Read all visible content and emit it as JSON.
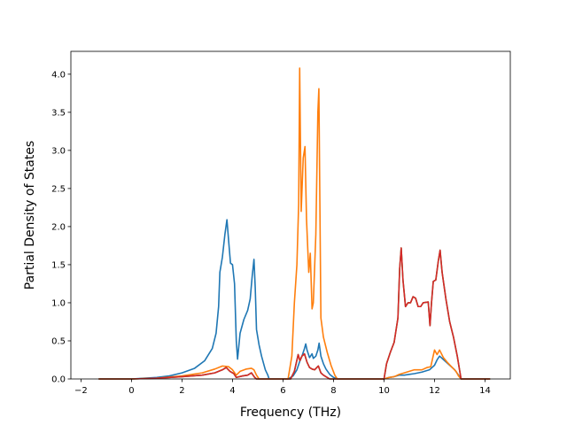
{
  "chart_data": {
    "type": "line",
    "title": "",
    "xlabel": "Frequency (THz)",
    "ylabel": "Partial Density of States",
    "xlim": [
      -2.4,
      15.0
    ],
    "ylim": [
      0.0,
      4.3
    ],
    "xticks": [
      -2,
      0,
      2,
      4,
      6,
      8,
      10,
      12,
      14
    ],
    "xtick_labels": [
      "−2",
      "0",
      "2",
      "4",
      "6",
      "8",
      "10",
      "12",
      "14"
    ],
    "yticks": [
      0.0,
      0.5,
      1.0,
      1.5,
      2.0,
      2.5,
      3.0,
      3.5,
      4.0
    ],
    "ytick_labels": [
      "0.0",
      "0.5",
      "1.0",
      "1.5",
      "2.0",
      "2.5",
      "3.0",
      "3.5",
      "4.0"
    ],
    "grid": false,
    "legend": false,
    "series": [
      {
        "color": "#1f77b4",
        "points": [
          [
            -1.3,
            0
          ],
          [
            0,
            0
          ],
          [
            0.5,
            0.01
          ],
          [
            1,
            0.02
          ],
          [
            1.5,
            0.04
          ],
          [
            2,
            0.08
          ],
          [
            2.5,
            0.14
          ],
          [
            2.9,
            0.24
          ],
          [
            3.2,
            0.4
          ],
          [
            3.35,
            0.6
          ],
          [
            3.45,
            0.95
          ],
          [
            3.5,
            1.4
          ],
          [
            3.6,
            1.6
          ],
          [
            3.7,
            1.9
          ],
          [
            3.78,
            2.09
          ],
          [
            3.85,
            1.8
          ],
          [
            3.92,
            1.52
          ],
          [
            4.0,
            1.5
          ],
          [
            4.08,
            1.25
          ],
          [
            4.15,
            0.5
          ],
          [
            4.2,
            0.26
          ],
          [
            4.3,
            0.6
          ],
          [
            4.45,
            0.78
          ],
          [
            4.6,
            0.9
          ],
          [
            4.7,
            1.05
          ],
          [
            4.78,
            1.35
          ],
          [
            4.85,
            1.57
          ],
          [
            4.9,
            1.2
          ],
          [
            4.95,
            0.65
          ],
          [
            5.05,
            0.45
          ],
          [
            5.15,
            0.3
          ],
          [
            5.3,
            0.12
          ],
          [
            5.4,
            0.05
          ],
          [
            5.45,
            0
          ],
          [
            6.2,
            0
          ],
          [
            6.4,
            0.04
          ],
          [
            6.55,
            0.12
          ],
          [
            6.65,
            0.22
          ],
          [
            6.75,
            0.3
          ],
          [
            6.85,
            0.4
          ],
          [
            6.9,
            0.46
          ],
          [
            6.95,
            0.38
          ],
          [
            7.05,
            0.28
          ],
          [
            7.15,
            0.33
          ],
          [
            7.2,
            0.27
          ],
          [
            7.3,
            0.3
          ],
          [
            7.38,
            0.38
          ],
          [
            7.43,
            0.47
          ],
          [
            7.5,
            0.3
          ],
          [
            7.6,
            0.2
          ],
          [
            7.7,
            0.13
          ],
          [
            7.85,
            0.06
          ],
          [
            8,
            0.02
          ],
          [
            8.15,
            0
          ],
          [
            10,
            0
          ],
          [
            10.2,
            0.02
          ],
          [
            10.4,
            0.03
          ],
          [
            10.6,
            0.05
          ],
          [
            10.8,
            0.05
          ],
          [
            11,
            0.06
          ],
          [
            11.2,
            0.07
          ],
          [
            11.5,
            0.09
          ],
          [
            11.8,
            0.12
          ],
          [
            12,
            0.18
          ],
          [
            12.1,
            0.25
          ],
          [
            12.2,
            0.3
          ],
          [
            12.4,
            0.24
          ],
          [
            12.6,
            0.18
          ],
          [
            12.8,
            0.12
          ],
          [
            12.95,
            0.05
          ],
          [
            13.05,
            0
          ],
          [
            14.2,
            0
          ]
        ]
      },
      {
        "color": "#ff7f0e",
        "points": [
          [
            -1.3,
            0
          ],
          [
            0,
            0
          ],
          [
            1,
            0.01
          ],
          [
            2,
            0.04
          ],
          [
            2.8,
            0.08
          ],
          [
            3.3,
            0.13
          ],
          [
            3.6,
            0.17
          ],
          [
            3.85,
            0.16
          ],
          [
            4.0,
            0.12
          ],
          [
            4.15,
            0.05
          ],
          [
            4.3,
            0.1
          ],
          [
            4.55,
            0.13
          ],
          [
            4.75,
            0.14
          ],
          [
            4.85,
            0.12
          ],
          [
            4.95,
            0.05
          ],
          [
            5.05,
            0
          ],
          [
            6.2,
            0
          ],
          [
            6.35,
            0.3
          ],
          [
            6.45,
            1.0
          ],
          [
            6.55,
            1.5
          ],
          [
            6.62,
            2.3
          ],
          [
            6.66,
            4.08
          ],
          [
            6.72,
            2.2
          ],
          [
            6.8,
            2.9
          ],
          [
            6.87,
            3.05
          ],
          [
            6.93,
            2.1
          ],
          [
            7.02,
            1.4
          ],
          [
            7.08,
            1.65
          ],
          [
            7.15,
            0.92
          ],
          [
            7.2,
            1.0
          ],
          [
            7.3,
            1.9
          ],
          [
            7.38,
            3.5
          ],
          [
            7.42,
            3.81
          ],
          [
            7.46,
            2.3
          ],
          [
            7.5,
            0.8
          ],
          [
            7.6,
            0.55
          ],
          [
            7.75,
            0.35
          ],
          [
            7.9,
            0.18
          ],
          [
            8.05,
            0.05
          ],
          [
            8.15,
            0
          ],
          [
            10,
            0
          ],
          [
            10.2,
            0.02
          ],
          [
            10.4,
            0.03
          ],
          [
            10.6,
            0.06
          ],
          [
            10.8,
            0.08
          ],
          [
            11,
            0.1
          ],
          [
            11.2,
            0.12
          ],
          [
            11.5,
            0.12
          ],
          [
            11.7,
            0.15
          ],
          [
            11.85,
            0.16
          ],
          [
            12.0,
            0.38
          ],
          [
            12.1,
            0.32
          ],
          [
            12.2,
            0.38
          ],
          [
            12.35,
            0.28
          ],
          [
            12.5,
            0.22
          ],
          [
            12.7,
            0.15
          ],
          [
            12.85,
            0.1
          ],
          [
            12.95,
            0.04
          ],
          [
            13.05,
            0
          ],
          [
            14.2,
            0
          ]
        ]
      },
      {
        "color": "#2ca02c",
        "points": [
          [
            -1.3,
            0
          ],
          [
            0,
            0
          ],
          [
            1,
            0.01
          ],
          [
            2,
            0.03
          ],
          [
            2.8,
            0.05
          ],
          [
            3.3,
            0.08
          ],
          [
            3.6,
            0.12
          ],
          [
            3.75,
            0.15
          ],
          [
            3.9,
            0.1
          ],
          [
            4.05,
            0.07
          ],
          [
            4.15,
            0.02
          ],
          [
            4.4,
            0.04
          ],
          [
            4.6,
            0.05
          ],
          [
            4.75,
            0.08
          ],
          [
            4.88,
            0.02
          ],
          [
            4.95,
            0
          ],
          [
            6.3,
            0
          ],
          [
            6.45,
            0.1
          ],
          [
            6.6,
            0.32
          ],
          [
            6.67,
            0.24
          ],
          [
            6.75,
            0.3
          ],
          [
            6.85,
            0.33
          ],
          [
            6.95,
            0.22
          ],
          [
            7.05,
            0.15
          ],
          [
            7.15,
            0.13
          ],
          [
            7.25,
            0.12
          ],
          [
            7.4,
            0.17
          ],
          [
            7.5,
            0.08
          ],
          [
            7.6,
            0.05
          ],
          [
            7.7,
            0.03
          ],
          [
            7.85,
            0
          ],
          [
            10,
            0
          ],
          [
            10.1,
            0.2
          ],
          [
            10.25,
            0.35
          ],
          [
            10.4,
            0.48
          ],
          [
            10.55,
            0.8
          ],
          [
            10.62,
            1.45
          ],
          [
            10.68,
            1.72
          ],
          [
            10.75,
            1.3
          ],
          [
            10.85,
            0.95
          ],
          [
            10.95,
            1.0
          ],
          [
            11.05,
            1.0
          ],
          [
            11.15,
            1.08
          ],
          [
            11.25,
            1.06
          ],
          [
            11.35,
            0.95
          ],
          [
            11.45,
            0.95
          ],
          [
            11.55,
            1.0
          ],
          [
            11.75,
            1.01
          ],
          [
            11.82,
            0.7
          ],
          [
            11.88,
            1.0
          ],
          [
            11.95,
            1.28
          ],
          [
            12.05,
            1.3
          ],
          [
            12.15,
            1.55
          ],
          [
            12.22,
            1.69
          ],
          [
            12.3,
            1.4
          ],
          [
            12.45,
            1.05
          ],
          [
            12.6,
            0.75
          ],
          [
            12.75,
            0.55
          ],
          [
            12.9,
            0.3
          ],
          [
            13.0,
            0.1
          ],
          [
            13.05,
            0
          ],
          [
            14.2,
            0
          ]
        ]
      },
      {
        "color": "#d62728",
        "points": [
          [
            -1.3,
            0
          ],
          [
            0,
            0
          ],
          [
            1,
            0.01
          ],
          [
            2,
            0.03
          ],
          [
            2.8,
            0.05
          ],
          [
            3.3,
            0.08
          ],
          [
            3.6,
            0.12
          ],
          [
            3.75,
            0.15
          ],
          [
            3.9,
            0.1
          ],
          [
            4.05,
            0.07
          ],
          [
            4.15,
            0.02
          ],
          [
            4.4,
            0.04
          ],
          [
            4.6,
            0.05
          ],
          [
            4.75,
            0.08
          ],
          [
            4.88,
            0.02
          ],
          [
            4.95,
            0
          ],
          [
            6.3,
            0
          ],
          [
            6.45,
            0.1
          ],
          [
            6.6,
            0.32
          ],
          [
            6.67,
            0.24
          ],
          [
            6.75,
            0.3
          ],
          [
            6.85,
            0.33
          ],
          [
            6.95,
            0.22
          ],
          [
            7.05,
            0.15
          ],
          [
            7.15,
            0.13
          ],
          [
            7.25,
            0.12
          ],
          [
            7.4,
            0.17
          ],
          [
            7.5,
            0.08
          ],
          [
            7.6,
            0.05
          ],
          [
            7.7,
            0.03
          ],
          [
            7.85,
            0
          ],
          [
            10,
            0
          ],
          [
            10.1,
            0.2
          ],
          [
            10.25,
            0.35
          ],
          [
            10.4,
            0.48
          ],
          [
            10.55,
            0.8
          ],
          [
            10.62,
            1.45
          ],
          [
            10.68,
            1.72
          ],
          [
            10.75,
            1.3
          ],
          [
            10.85,
            0.95
          ],
          [
            10.95,
            1.0
          ],
          [
            11.05,
            1.0
          ],
          [
            11.15,
            1.08
          ],
          [
            11.25,
            1.06
          ],
          [
            11.35,
            0.95
          ],
          [
            11.45,
            0.95
          ],
          [
            11.55,
            1.0
          ],
          [
            11.75,
            1.01
          ],
          [
            11.82,
            0.7
          ],
          [
            11.88,
            1.0
          ],
          [
            11.95,
            1.28
          ],
          [
            12.05,
            1.3
          ],
          [
            12.15,
            1.55
          ],
          [
            12.22,
            1.69
          ],
          [
            12.3,
            1.4
          ],
          [
            12.45,
            1.05
          ],
          [
            12.6,
            0.75
          ],
          [
            12.75,
            0.55
          ],
          [
            12.9,
            0.3
          ],
          [
            13.0,
            0.1
          ],
          [
            13.05,
            0
          ],
          [
            14.2,
            0
          ]
        ]
      }
    ]
  }
}
